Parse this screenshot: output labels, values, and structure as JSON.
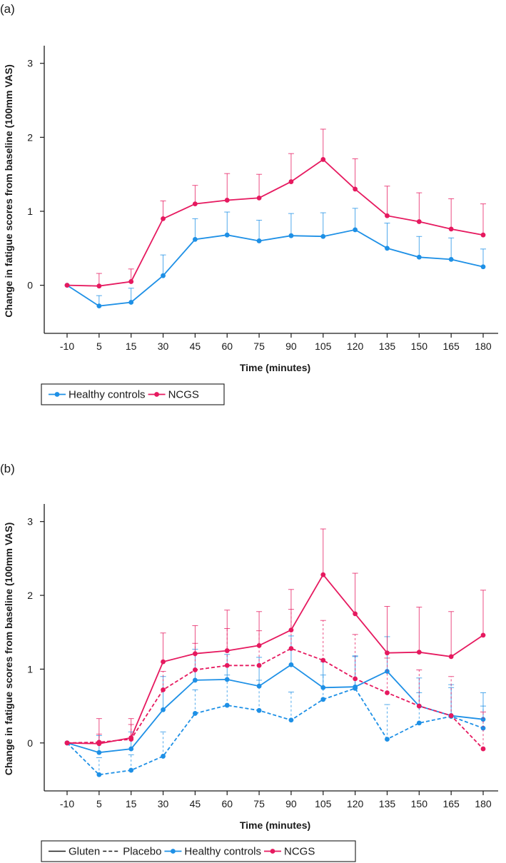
{
  "colors": {
    "healthy": "#1E90E6",
    "ncgs": "#E6195F",
    "axis": "#1a1a1a"
  },
  "legend_symbols": {
    "healthy": "blue-dot-line",
    "ncgs": "magenta-dot-line"
  },
  "chart_data": [
    {
      "panel_label": "(a)",
      "type": "line",
      "xlabel": "Time (minutes)",
      "ylabel": "Change in fatigue scores from baseline (100mm VAS)",
      "categories": [
        "-10",
        "5",
        "15",
        "30",
        "45",
        "60",
        "75",
        "90",
        "105",
        "120",
        "135",
        "150",
        "165",
        "180"
      ],
      "ylim": [
        -0.65,
        3.2
      ],
      "yticks": [
        "0",
        "1",
        "2",
        "3"
      ],
      "series": [
        {
          "name": "Healthy controls",
          "color_key": "healthy",
          "style": "solid",
          "values": [
            0.0,
            -0.28,
            -0.23,
            0.13,
            0.62,
            0.68,
            0.6,
            0.67,
            0.66,
            0.75,
            0.5,
            0.38,
            0.35,
            0.25
          ],
          "err_upper": [
            0.0,
            -0.14,
            -0.04,
            0.41,
            0.9,
            0.99,
            0.88,
            0.97,
            0.98,
            1.04,
            0.84,
            0.66,
            0.64,
            0.49
          ]
        },
        {
          "name": "NCGS",
          "color_key": "ncgs",
          "style": "solid",
          "values": [
            0.0,
            -0.01,
            0.05,
            0.9,
            1.1,
            1.15,
            1.18,
            1.4,
            1.7,
            1.3,
            0.94,
            0.86,
            0.76,
            0.68
          ],
          "err_upper": [
            0.0,
            0.16,
            0.22,
            1.14,
            1.35,
            1.51,
            1.5,
            1.78,
            2.11,
            1.71,
            1.34,
            1.25,
            1.17,
            1.1
          ]
        }
      ],
      "legend": [
        {
          "label": "Healthy controls",
          "type": "marker-line",
          "color_key": "healthy"
        },
        {
          "label": "NCGS",
          "type": "marker-line",
          "color_key": "ncgs"
        }
      ]
    },
    {
      "panel_label": "(b)",
      "type": "line",
      "xlabel": "Time (minutes)",
      "ylabel": "Change in fatigue scores from baseline (100mm VAS)",
      "categories": [
        "-10",
        "5",
        "15",
        "30",
        "45",
        "60",
        "75",
        "90",
        "105",
        "120",
        "135",
        "150",
        "165",
        "180"
      ],
      "ylim": [
        -0.65,
        3.2
      ],
      "yticks": [
        "0",
        "1",
        "2",
        "3"
      ],
      "series": [
        {
          "name": "Healthy controls (Gluten)",
          "color_key": "healthy",
          "style": "solid",
          "values": [
            0.0,
            -0.13,
            -0.08,
            0.45,
            0.85,
            0.86,
            0.77,
            1.06,
            0.75,
            0.76,
            0.97,
            0.5,
            0.37,
            0.32
          ],
          "err_upper": [
            0.0,
            0.1,
            0.15,
            0.9,
            1.27,
            1.2,
            1.16,
            1.45,
            1.1,
            1.18,
            1.44,
            0.88,
            0.75,
            0.68
          ]
        },
        {
          "name": "Healthy controls (Placebo)",
          "color_key": "healthy",
          "style": "dashed",
          "values": [
            0.0,
            -0.43,
            -0.37,
            -0.18,
            0.4,
            0.51,
            0.44,
            0.31,
            0.59,
            0.74,
            0.05,
            0.27,
            0.36,
            0.2
          ],
          "err_upper": [
            0.0,
            -0.2,
            -0.16,
            0.15,
            0.72,
            0.92,
            0.85,
            0.69,
            0.92,
            1.17,
            0.52,
            0.68,
            0.79,
            0.5
          ]
        },
        {
          "name": "NCGS (Gluten)",
          "color_key": "ncgs",
          "style": "solid",
          "values": [
            0.0,
            -0.01,
            0.07,
            1.1,
            1.21,
            1.25,
            1.32,
            1.53,
            2.28,
            1.75,
            1.22,
            1.23,
            1.17,
            1.46
          ],
          "err_upper": [
            0.0,
            0.33,
            0.33,
            1.49,
            1.59,
            1.8,
            1.78,
            2.08,
            2.9,
            2.3,
            1.85,
            1.84,
            1.78,
            2.07
          ]
        },
        {
          "name": "NCGS (Placebo)",
          "color_key": "ncgs",
          "style": "dashed",
          "values": [
            0.0,
            0.01,
            0.05,
            0.72,
            0.99,
            1.05,
            1.05,
            1.28,
            1.12,
            0.87,
            0.68,
            0.5,
            0.37,
            -0.08
          ],
          "err_upper": [
            0.0,
            0.12,
            0.25,
            0.97,
            1.35,
            1.55,
            1.52,
            1.81,
            1.66,
            1.47,
            1.15,
            0.99,
            0.9,
            0.42
          ]
        }
      ],
      "legend": [
        {
          "label": "Gluten",
          "type": "line-solid",
          "color_key": "axis"
        },
        {
          "label": "Placebo",
          "type": "line-dashed",
          "color_key": "axis"
        },
        {
          "label": "Healthy controls",
          "type": "marker-line",
          "color_key": "healthy"
        },
        {
          "label": "NCGS",
          "type": "marker-line",
          "color_key": "ncgs"
        }
      ]
    }
  ]
}
